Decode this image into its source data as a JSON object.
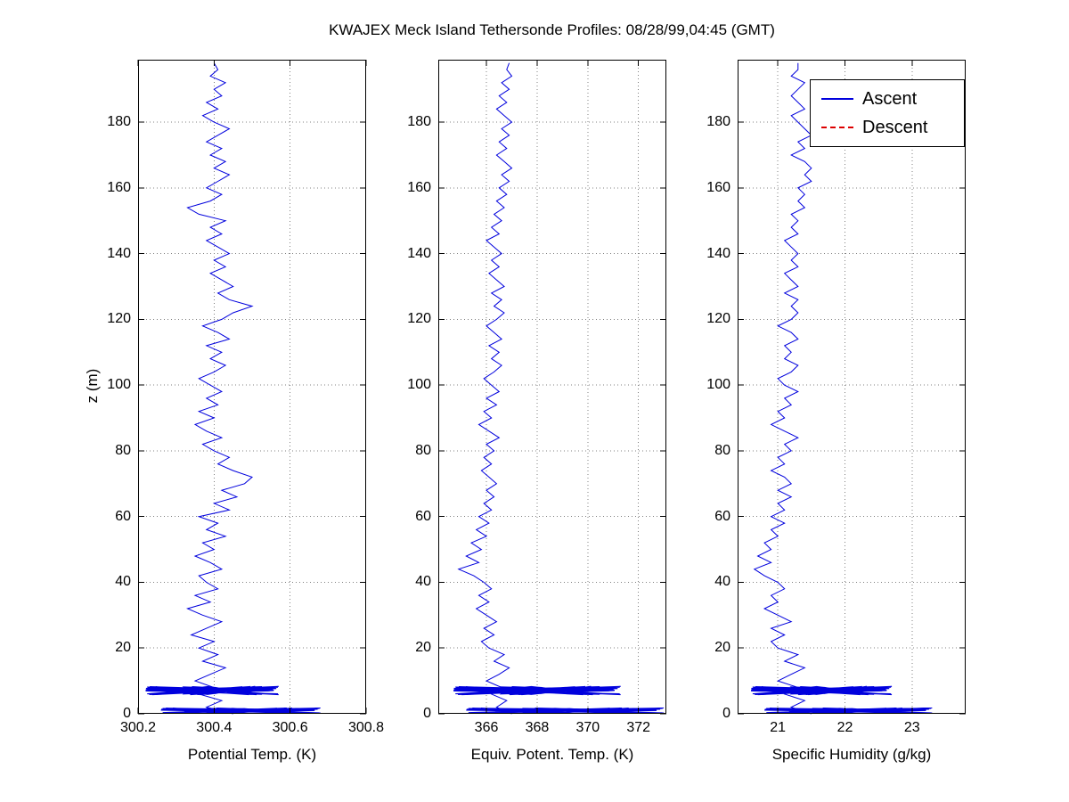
{
  "chart_data": {
    "type": "line",
    "title": "KWAJEX Meck Island Tethersonde Profiles: 08/28/99,04:45 (GMT)",
    "ylabel": "z (m)",
    "ylim": [
      0,
      199
    ],
    "yticks": [
      0,
      20,
      40,
      60,
      80,
      100,
      120,
      140,
      160,
      180
    ],
    "grid": true,
    "line_color": "#0000dd",
    "grid_color": "#808080",
    "legend": [
      {
        "label": "Ascent",
        "color": "#0000dd",
        "style": "solid"
      },
      {
        "label": "Descent",
        "color": "#dd0000",
        "style": "dashed"
      }
    ],
    "legend_position": "top-right",
    "z": [
      0,
      2,
      4,
      6,
      8,
      10,
      12,
      14,
      16,
      18,
      20,
      22,
      24,
      26,
      28,
      30,
      32,
      34,
      36,
      38,
      40,
      42,
      44,
      46,
      48,
      50,
      52,
      54,
      56,
      58,
      60,
      62,
      64,
      66,
      68,
      70,
      72,
      74,
      76,
      78,
      80,
      82,
      84,
      86,
      88,
      90,
      92,
      94,
      96,
      98,
      100,
      102,
      104,
      106,
      108,
      110,
      112,
      114,
      116,
      118,
      120,
      122,
      124,
      126,
      128,
      130,
      132,
      134,
      136,
      138,
      140,
      142,
      144,
      146,
      148,
      150,
      152,
      154,
      156,
      158,
      160,
      162,
      164,
      166,
      168,
      170,
      172,
      174,
      176,
      178,
      180,
      182,
      184,
      186,
      188,
      190,
      192,
      194,
      196,
      198
    ],
    "subplots": [
      {
        "xlabel": "Potential Temp. (K)",
        "xlim": [
          300.2,
          300.8
        ],
        "xticks": [
          300.2,
          300.4,
          300.6,
          300.8
        ],
        "xtick_labels": [
          "300.2",
          "300.4",
          "300.6",
          "300.8"
        ],
        "ascent_x": [
          300.45,
          300.38,
          300.42,
          300.36,
          300.4,
          300.35,
          300.39,
          300.43,
          300.37,
          300.41,
          300.36,
          300.4,
          300.34,
          300.38,
          300.42,
          300.37,
          300.33,
          300.39,
          300.35,
          300.41,
          300.38,
          300.36,
          300.42,
          300.39,
          300.35,
          300.4,
          300.37,
          300.43,
          300.38,
          300.41,
          300.36,
          300.44,
          300.4,
          300.46,
          300.42,
          300.48,
          300.5,
          300.45,
          300.41,
          300.44,
          300.4,
          300.37,
          300.42,
          300.38,
          300.35,
          300.4,
          300.36,
          300.41,
          300.38,
          300.42,
          300.39,
          300.36,
          300.4,
          300.43,
          300.39,
          300.42,
          300.38,
          300.44,
          300.41,
          300.37,
          300.42,
          300.45,
          300.5,
          300.44,
          300.41,
          300.45,
          300.42,
          300.39,
          300.43,
          300.4,
          300.44,
          300.41,
          300.38,
          300.42,
          300.39,
          300.43,
          300.36,
          300.33,
          300.39,
          300.42,
          300.38,
          300.41,
          300.44,
          300.4,
          300.43,
          300.39,
          300.42,
          300.38,
          300.41,
          300.44,
          300.4,
          300.37,
          300.41,
          300.38,
          300.42,
          300.4,
          300.43,
          300.39,
          300.41,
          300.4
        ],
        "surface_bands": [
          {
            "x_min": 300.22,
            "x_max": 300.57,
            "z_min": 5.8,
            "z_max": 8.4,
            "points": 80
          },
          {
            "x_min": 300.26,
            "x_max": 300.68,
            "z_min": 0.2,
            "z_max": 1.8,
            "points": 70
          }
        ]
      },
      {
        "xlabel": "Equiv. Potent. Temp. (K)",
        "xlim": [
          364.1,
          373.1
        ],
        "xticks": [
          366,
          368,
          370,
          372
        ],
        "xtick_labels": [
          "366",
          "368",
          "370",
          "372"
        ],
        "ascent_x": [
          367.0,
          366.4,
          366.8,
          366.2,
          366.6,
          366.0,
          366.5,
          366.9,
          366.3,
          366.7,
          366.1,
          365.8,
          366.3,
          365.9,
          366.4,
          366.0,
          365.6,
          366.1,
          365.7,
          366.2,
          365.9,
          365.5,
          364.9,
          365.7,
          365.2,
          365.8,
          365.4,
          366.0,
          365.6,
          366.1,
          365.7,
          366.2,
          365.9,
          366.3,
          366.0,
          366.4,
          366.1,
          365.8,
          366.2,
          365.9,
          366.3,
          366.0,
          366.5,
          366.1,
          365.7,
          366.2,
          365.9,
          366.4,
          366.0,
          366.5,
          366.2,
          365.9,
          366.3,
          366.6,
          366.2,
          366.5,
          366.1,
          366.6,
          366.3,
          366.0,
          366.4,
          366.7,
          366.3,
          366.6,
          366.2,
          366.7,
          366.4,
          366.1,
          366.5,
          366.2,
          366.6,
          366.3,
          366.0,
          366.5,
          366.2,
          366.6,
          366.3,
          366.7,
          366.4,
          366.8,
          366.5,
          366.9,
          366.6,
          367.0,
          366.7,
          366.4,
          366.8,
          366.5,
          366.9,
          366.6,
          367.0,
          366.7,
          366.4,
          366.8,
          366.5,
          366.9,
          366.6,
          367.0,
          366.8,
          366.9
        ],
        "surface_bands": [
          {
            "x_min": 364.7,
            "x_max": 371.3,
            "z_min": 5.8,
            "z_max": 8.4,
            "points": 80
          },
          {
            "x_min": 365.2,
            "x_max": 373.0,
            "z_min": 0.2,
            "z_max": 1.8,
            "points": 70
          }
        ]
      },
      {
        "xlabel": "Specific Humidity (g/kg)",
        "xlim": [
          20.4,
          23.8
        ],
        "xticks": [
          21,
          22,
          23
        ],
        "xtick_labels": [
          "21",
          "22",
          "23"
        ],
        "ascent_x": [
          21.5,
          21.2,
          21.4,
          21.1,
          21.3,
          21.0,
          21.2,
          21.4,
          21.1,
          21.3,
          21.0,
          20.9,
          21.1,
          20.9,
          21.2,
          21.0,
          20.8,
          21.0,
          20.9,
          21.1,
          21.0,
          20.8,
          20.65,
          20.9,
          20.7,
          20.9,
          20.8,
          21.0,
          20.9,
          21.1,
          20.9,
          21.1,
          21.0,
          21.2,
          21.0,
          21.2,
          21.1,
          20.9,
          21.1,
          21.0,
          21.2,
          21.1,
          21.3,
          21.1,
          20.9,
          21.1,
          21.0,
          21.2,
          21.1,
          21.3,
          21.1,
          21.0,
          21.2,
          21.3,
          21.1,
          21.2,
          21.1,
          21.3,
          21.2,
          21.0,
          21.2,
          21.3,
          21.2,
          21.3,
          21.1,
          21.3,
          21.2,
          21.1,
          21.3,
          21.2,
          21.3,
          21.2,
          21.1,
          21.3,
          21.2,
          21.3,
          21.2,
          21.4,
          21.3,
          21.4,
          21.3,
          21.5,
          21.4,
          21.5,
          21.4,
          21.2,
          21.4,
          21.3,
          21.5,
          21.4,
          21.3,
          21.2,
          21.4,
          21.3,
          21.2,
          21.3,
          21.4,
          21.2,
          21.3,
          21.3
        ],
        "surface_bands": [
          {
            "x_min": 20.6,
            "x_max": 22.7,
            "z_min": 5.8,
            "z_max": 8.4,
            "points": 80
          },
          {
            "x_min": 20.8,
            "x_max": 23.3,
            "z_min": 0.2,
            "z_max": 1.8,
            "points": 70
          }
        ]
      }
    ]
  }
}
